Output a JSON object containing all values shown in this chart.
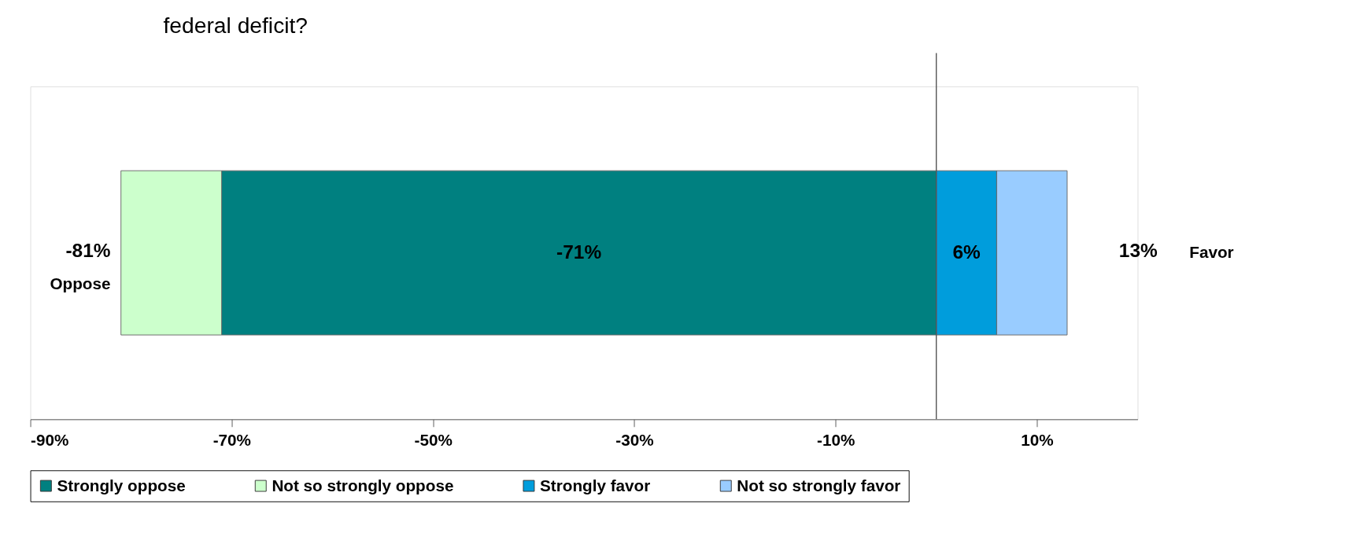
{
  "chart_data": {
    "type": "bar",
    "title": "federal deficit?",
    "orientation": "horizontal",
    "stacked": true,
    "categories": [
      null
    ],
    "series": [
      {
        "name": "Strongly oppose",
        "color": "#008080",
        "values": [
          -71
        ],
        "value_labels": [
          "-71%"
        ]
      },
      {
        "name": "Not so strongly oppose",
        "color": "#ccffcc",
        "values": [
          -10
        ],
        "value_labels": [
          null
        ]
      },
      {
        "name": "Strongly favor",
        "color": "#009ddc",
        "values": [
          6
        ],
        "value_labels": [
          "6%"
        ]
      },
      {
        "name": "Not so strongly favor",
        "color": "#99ccff",
        "values": [
          7
        ],
        "value_labels": [
          null
        ]
      }
    ],
    "xlim": [
      -90,
      20
    ],
    "xticks": [
      {
        "value": -90,
        "label": "-90%"
      },
      {
        "value": -70,
        "label": "-70%"
      },
      {
        "value": -50,
        "label": "-50%"
      },
      {
        "value": -30,
        "label": "-30%"
      },
      {
        "value": -10,
        "label": "-10%"
      },
      {
        "value": 10,
        "label": "10%"
      }
    ],
    "ref_lines": [
      {
        "axis": "x",
        "value": 0,
        "color": "#555555"
      }
    ],
    "annotations": [
      {
        "text": "-81%",
        "x": -81
      },
      "Oppose",
      {
        "text": "13%",
        "x": 13
      },
      "Favor"
    ],
    "grid": false,
    "legend": "bottom"
  }
}
